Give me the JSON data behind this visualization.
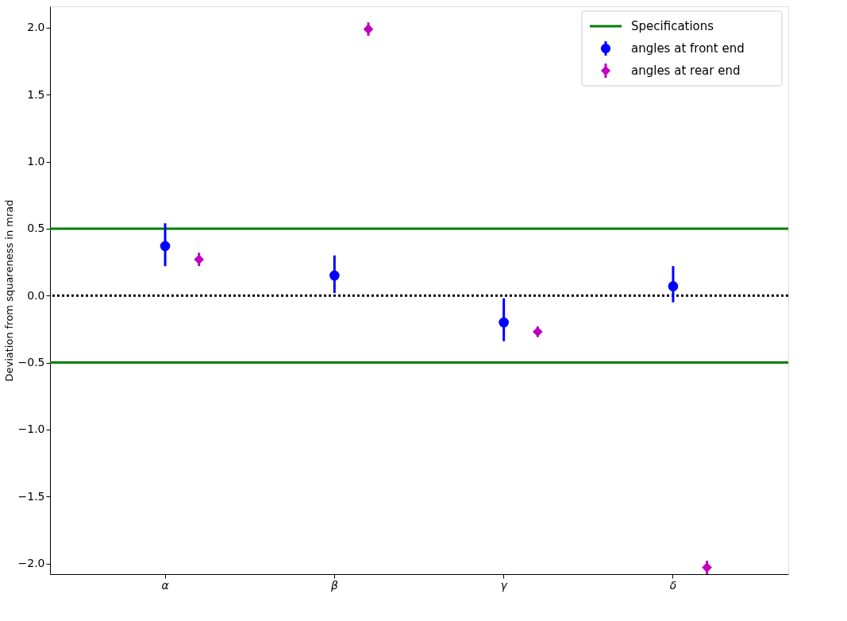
{
  "chart_data": {
    "type": "scatter",
    "ylabel": "Deviation from squareness in mrad",
    "ylim": [
      -2.08,
      2.16
    ],
    "categories": [
      "α",
      "β",
      "γ",
      "δ"
    ],
    "yticks": [
      {
        "value": -2.0,
        "label": "−2.0"
      },
      {
        "value": -1.5,
        "label": "−1.5"
      },
      {
        "value": -1.0,
        "label": "−1.0"
      },
      {
        "value": -0.5,
        "label": "−0.5"
      },
      {
        "value": 0.0,
        "label": "0.0"
      },
      {
        "value": 0.5,
        "label": "0.5"
      },
      {
        "value": 1.0,
        "label": "1.0"
      },
      {
        "value": 1.5,
        "label": "1.5"
      },
      {
        "value": 2.0,
        "label": "2.0"
      }
    ],
    "series": [
      {
        "name": "angles at front end",
        "color": "#0000ff",
        "marker": "circle",
        "values": [
          0.37,
          0.15,
          -0.2,
          0.07
        ],
        "errors": [
          [
            0.22,
            0.54
          ],
          [
            0.02,
            0.3
          ],
          [
            -0.34,
            -0.02
          ],
          [
            -0.05,
            0.22
          ]
        ]
      },
      {
        "name": "angles at rear end",
        "color": "#bf00bf",
        "marker": "diamond",
        "values": [
          0.27,
          1.99,
          -0.27,
          -2.03
        ],
        "errors": [
          [
            0.22,
            0.32
          ],
          [
            1.94,
            2.04
          ],
          [
            -0.31,
            -0.23
          ],
          [
            -2.08,
            -1.98
          ]
        ]
      }
    ],
    "ref_lines": [
      {
        "axis": "y",
        "value": 0.5,
        "label": "Specifications",
        "color": "#008000",
        "line_style": "solid"
      },
      {
        "axis": "y",
        "value": -0.5,
        "color": "#008000",
        "line_style": "solid"
      },
      {
        "axis": "y",
        "value": 0.0,
        "color": "#000000",
        "line_style": "dotted"
      }
    ],
    "legend": "top right",
    "grid": false
  }
}
